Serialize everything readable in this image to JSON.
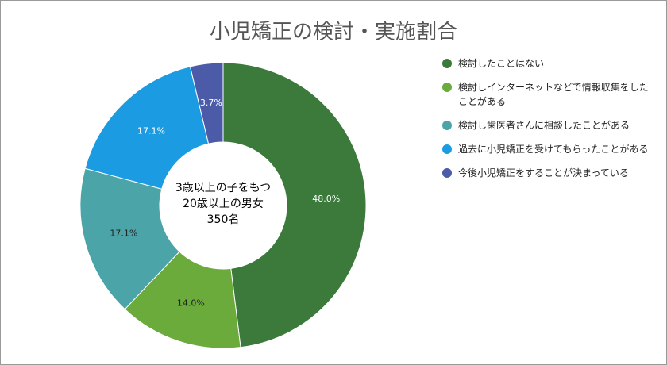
{
  "chart_data": {
    "type": "donut",
    "title": "小児矯正の検討・実施割合",
    "center_label": [
      "3歳以上の子をもつ",
      "20歳以上の男女",
      "350名"
    ],
    "categories": [
      "検討したことはない",
      "検討しインターネットなどで情報収集をしたことがある",
      "検討し歯医者さんに相談したことがある",
      "過去に小児矯正を受けてもらったことがある",
      "今後小児矯正をすることが決まっている"
    ],
    "values": [
      48.0,
      14.0,
      17.1,
      17.1,
      3.7
    ],
    "value_labels": [
      "48.0%",
      "14.0%",
      "17.1%",
      "17.1%",
      "3.7%"
    ],
    "colors": [
      "#3b7a3b",
      "#6aab3c",
      "#4ba4a8",
      "#1b9ce2",
      "#4b5ba8"
    ],
    "legend": "right"
  }
}
